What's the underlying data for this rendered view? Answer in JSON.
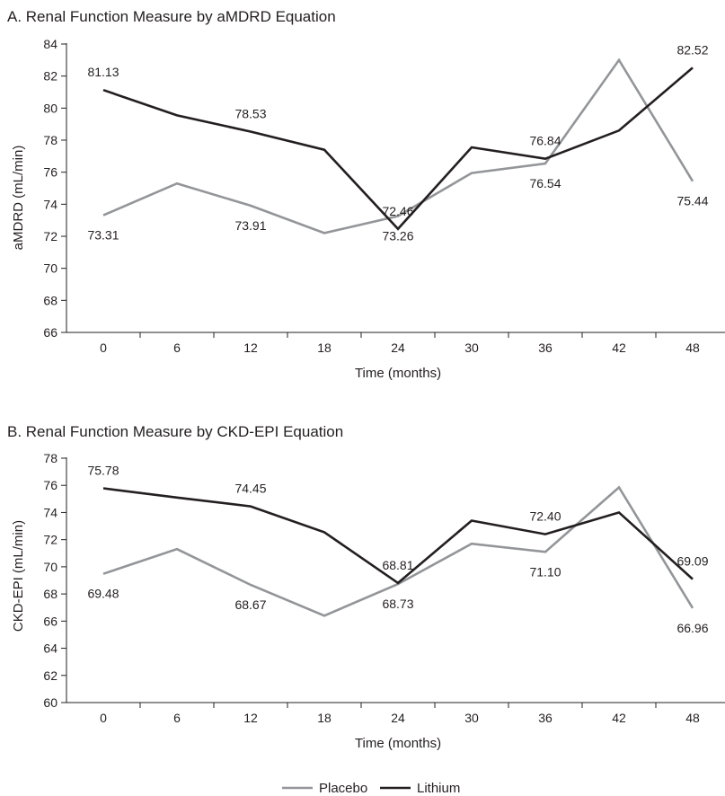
{
  "chart_data": [
    {
      "type": "line",
      "title": "A. Renal Function Measure by aMDRD Equation",
      "xlabel": "Time (months)",
      "ylabel": "aMDRD (mL/min)",
      "x": [
        0,
        6,
        12,
        18,
        24,
        30,
        36,
        42,
        48
      ],
      "x_tick_labels": [
        "0",
        "6",
        "12",
        "18",
        "24",
        "30",
        "36",
        "42",
        "48"
      ],
      "y_tick_labels": [
        "66",
        "68",
        "70",
        "72",
        "74",
        "76",
        "78",
        "80",
        "82",
        "84"
      ],
      "ylim": [
        66,
        84
      ],
      "grid": false,
      "series": [
        {
          "name": "Placebo",
          "color": "#939598",
          "values": [
            73.31,
            75.3,
            73.91,
            72.2,
            73.26,
            75.95,
            76.54,
            83.0,
            75.44
          ],
          "data_labels": [
            {
              "index": 0,
              "text": "73.31",
              "pos": "below"
            },
            {
              "index": 2,
              "text": "73.91",
              "pos": "below"
            },
            {
              "index": 4,
              "text": "73.26",
              "pos": "below"
            },
            {
              "index": 6,
              "text": "76.54",
              "pos": "below"
            },
            {
              "index": 8,
              "text": "75.44",
              "pos": "below"
            }
          ]
        },
        {
          "name": "Lithium",
          "color": "#231f20",
          "values": [
            81.13,
            79.55,
            78.53,
            77.4,
            72.46,
            77.55,
            76.84,
            78.6,
            82.52
          ],
          "data_labels": [
            {
              "index": 0,
              "text": "81.13",
              "pos": "above"
            },
            {
              "index": 2,
              "text": "78.53",
              "pos": "above"
            },
            {
              "index": 4,
              "text": "72.46",
              "pos": "above"
            },
            {
              "index": 6,
              "text": "76.84",
              "pos": "above"
            },
            {
              "index": 8,
              "text": "82.52",
              "pos": "above"
            }
          ]
        }
      ]
    },
    {
      "type": "line",
      "title": "B. Renal Function Measure by CKD-EPI Equation",
      "xlabel": "Time (months)",
      "ylabel": "CKD-EPI (mL/min)",
      "x": [
        0,
        6,
        12,
        18,
        24,
        30,
        36,
        42,
        48
      ],
      "x_tick_labels": [
        "0",
        "6",
        "12",
        "18",
        "24",
        "30",
        "36",
        "42",
        "48"
      ],
      "y_tick_labels": [
        "60",
        "62",
        "64",
        "66",
        "68",
        "70",
        "72",
        "74",
        "76",
        "78"
      ],
      "ylim": [
        60,
        78
      ],
      "grid": false,
      "series": [
        {
          "name": "Placebo",
          "color": "#939598",
          "values": [
            69.48,
            71.3,
            68.67,
            66.4,
            68.73,
            71.7,
            71.1,
            75.85,
            66.96
          ],
          "data_labels": [
            {
              "index": 0,
              "text": "69.48",
              "pos": "below"
            },
            {
              "index": 2,
              "text": "68.67",
              "pos": "below"
            },
            {
              "index": 4,
              "text": "68.73",
              "pos": "below"
            },
            {
              "index": 6,
              "text": "71.10",
              "pos": "below"
            },
            {
              "index": 8,
              "text": "66.96",
              "pos": "below"
            }
          ]
        },
        {
          "name": "Lithium",
          "color": "#231f20",
          "values": [
            75.78,
            75.1,
            74.45,
            72.55,
            68.81,
            73.4,
            72.4,
            74.0,
            69.09
          ],
          "data_labels": [
            {
              "index": 0,
              "text": "75.78",
              "pos": "above"
            },
            {
              "index": 2,
              "text": "74.45",
              "pos": "above"
            },
            {
              "index": 4,
              "text": "68.81",
              "pos": "above"
            },
            {
              "index": 6,
              "text": "72.40",
              "pos": "above"
            },
            {
              "index": 8,
              "text": "69.09",
              "pos": "above"
            }
          ]
        }
      ]
    }
  ],
  "legend": {
    "placement": "bottom-center",
    "items": [
      {
        "label": "Placebo",
        "color": "#939598"
      },
      {
        "label": "Lithium",
        "color": "#231f20"
      }
    ]
  }
}
